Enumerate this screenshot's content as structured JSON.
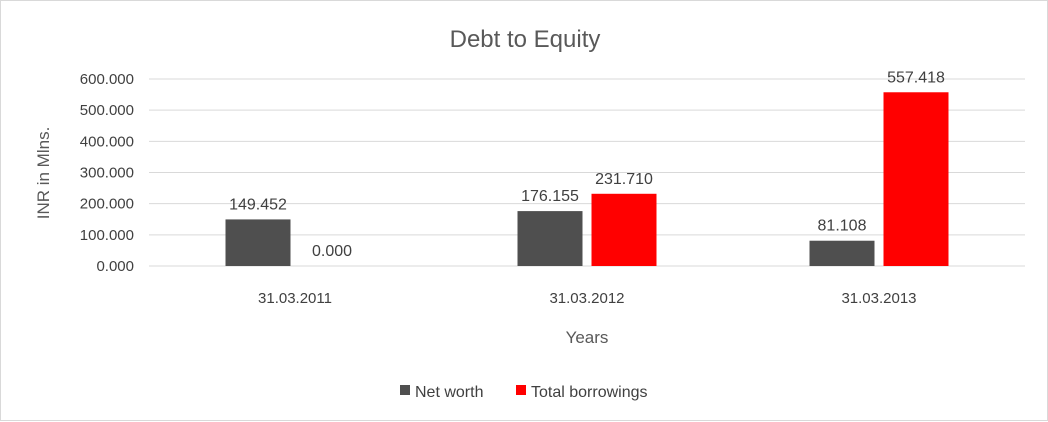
{
  "chart_data": {
    "type": "bar",
    "title": "Debt to Equity",
    "xlabel": "Years",
    "ylabel": "INR in Mlns.",
    "categories": [
      "31.03.2011",
      "31.03.2012",
      "31.03.2013"
    ],
    "series": [
      {
        "name": "Net worth",
        "values": [
          149.452,
          176.155,
          81.108
        ],
        "color": "#4f4f4f"
      },
      {
        "name": "Total borrowings",
        "values": [
          0.0,
          231.71,
          557.418
        ],
        "color": "#ff0000"
      }
    ],
    "data_labels": [
      [
        "149.452",
        "176.155",
        "81.108"
      ],
      [
        "0.000",
        "231.710",
        "557.418"
      ]
    ],
    "ylim": [
      0,
      600
    ],
    "yticks": [
      0,
      100,
      200,
      300,
      400,
      500,
      600
    ],
    "ytick_labels": [
      "0.000",
      "100.000",
      "200.000",
      "300.000",
      "400.000",
      "500.000",
      "600.000"
    ],
    "grid": true,
    "legend_position": "bottom"
  }
}
